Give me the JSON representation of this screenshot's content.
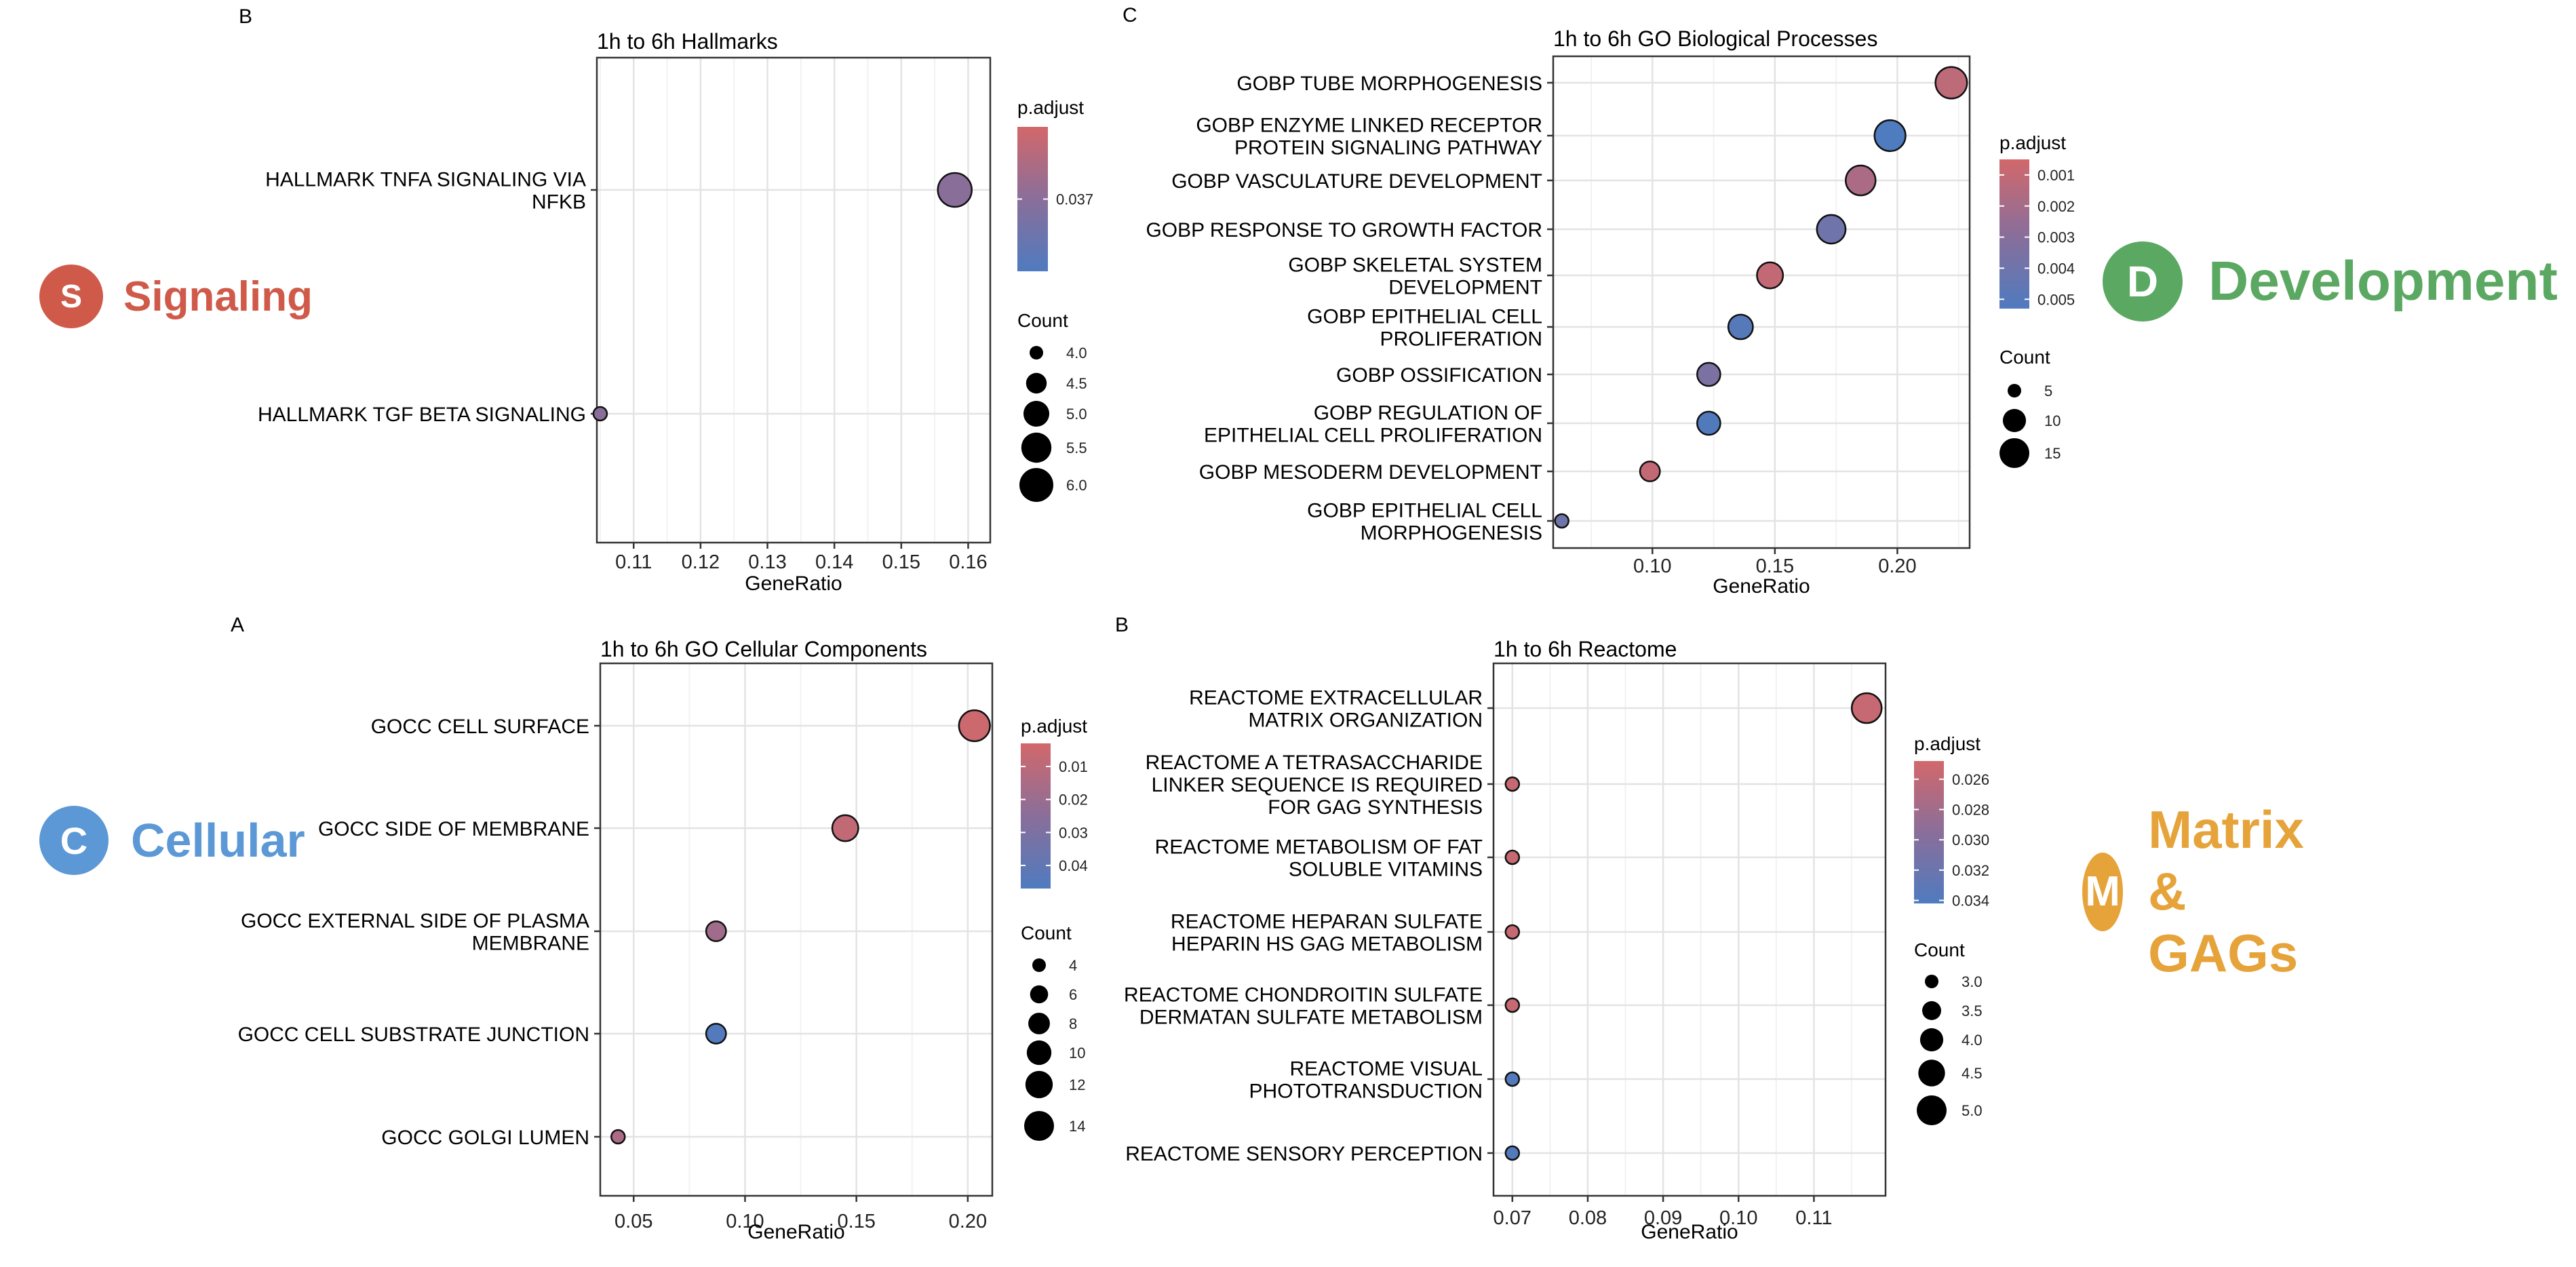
{
  "panel_letters": [
    "B",
    "C",
    "A",
    "B"
  ],
  "badges": [
    {
      "letter": "S",
      "label": "Signaling",
      "color": "#d05a4a"
    },
    {
      "letter": "D",
      "label": "Development",
      "color": "#5ba862"
    },
    {
      "letter": "C",
      "label": "Cellular",
      "color": "#5b98d5"
    },
    {
      "letter": "M",
      "label": "Matrix & GAGs",
      "color": "#e5a33a"
    }
  ],
  "legend_labels": {
    "color_title": "p.adjust",
    "size_title": "Count"
  },
  "colors": {
    "low": "#d2686b",
    "mid": "#8a6e9a",
    "high": "#4f7bbf"
  },
  "chart_data": [
    {
      "id": "hallmarks",
      "type": "scatter",
      "title": "1h to 6h Hallmarks",
      "xlabel": "GeneRatio",
      "ylabel": "",
      "xlim": [
        0.1045,
        0.1633
      ],
      "xticks": [
        0.11,
        0.12,
        0.13,
        0.14,
        0.15,
        0.16
      ],
      "xtick_labels": [
        "0.11",
        "0.12",
        "0.13",
        "0.14",
        "0.15",
        "0.16"
      ],
      "grid": true,
      "legend_placement": "right",
      "categories": [
        [
          "HALLMARK TNFA SIGNALING VIA",
          "NFKB"
        ],
        [
          "HALLMARK TGF BETA SIGNALING"
        ]
      ],
      "points": [
        {
          "x": 0.158,
          "count": 6,
          "p_adjust": 0.037
        },
        {
          "x": 0.105,
          "count": 4,
          "p_adjust": 0.037
        }
      ],
      "color_range": [
        0.036,
        0.038
      ],
      "color_ticks": [
        0.037
      ],
      "color_tick_labels": [
        "0.037"
      ],
      "size_ticks": [
        4.0,
        4.5,
        5.0,
        5.5,
        6.0
      ],
      "size_tick_labels": [
        "4.0",
        "4.5",
        "5.0",
        "5.5",
        "6.0"
      ]
    },
    {
      "id": "go-bp",
      "type": "scatter",
      "title": "1h to 6h GO Biological Processes",
      "xlabel": "GeneRatio",
      "ylabel": "",
      "xlim": [
        0.0595,
        0.2295
      ],
      "xticks": [
        0.1,
        0.15,
        0.2
      ],
      "xtick_labels": [
        "0.10",
        "0.15",
        "0.20"
      ],
      "grid": true,
      "legend_placement": "right",
      "categories": [
        [
          "GOBP TUBE MORPHOGENESIS"
        ],
        [
          "GOBP ENZYME LINKED RECEPTOR",
          "PROTEIN SIGNALING PATHWAY"
        ],
        [
          "GOBP VASCULATURE DEVELOPMENT"
        ],
        [
          "GOBP RESPONSE TO GROWTH FACTOR"
        ],
        [
          "GOBP SKELETAL SYSTEM",
          "DEVELOPMENT"
        ],
        [
          "GOBP EPITHELIAL CELL",
          "PROLIFERATION"
        ],
        [
          "GOBP OSSIFICATION"
        ],
        [
          "GOBP REGULATION OF",
          "EPITHELIAL CELL PROLIFERATION"
        ],
        [
          "GOBP MESODERM DEVELOPMENT"
        ],
        [
          "GOBP EPITHELIAL CELL",
          "MORPHOGENESIS"
        ]
      ],
      "points": [
        {
          "x": 0.222,
          "count": 17,
          "p_adjust": 0.0012
        },
        {
          "x": 0.197,
          "count": 16,
          "p_adjust": 0.0053
        },
        {
          "x": 0.185,
          "count": 15,
          "p_adjust": 0.0018
        },
        {
          "x": 0.173,
          "count": 14,
          "p_adjust": 0.004
        },
        {
          "x": 0.148,
          "count": 12,
          "p_adjust": 0.001
        },
        {
          "x": 0.136,
          "count": 11,
          "p_adjust": 0.005
        },
        {
          "x": 0.123,
          "count": 10,
          "p_adjust": 0.0035
        },
        {
          "x": 0.123,
          "count": 10,
          "p_adjust": 0.0052
        },
        {
          "x": 0.099,
          "count": 8,
          "p_adjust": 0.001
        },
        {
          "x": 0.063,
          "count": 5,
          "p_adjust": 0.004
        }
      ],
      "color_range": [
        0.0005,
        0.0053
      ],
      "color_ticks": [
        0.001,
        0.002,
        0.003,
        0.004,
        0.005
      ],
      "color_tick_labels": [
        "0.001",
        "0.002",
        "0.003",
        "0.004",
        "0.005"
      ],
      "size_ticks": [
        5,
        10,
        15
      ],
      "size_tick_labels": [
        "5",
        "10",
        "15"
      ]
    },
    {
      "id": "go-cc",
      "type": "scatter",
      "title": "1h to 6h GO Cellular Components",
      "xlabel": "GeneRatio",
      "ylabel": "",
      "xlim": [
        0.035,
        0.211
      ],
      "xticks": [
        0.05,
        0.1,
        0.15,
        0.2
      ],
      "xtick_labels": [
        "0.05",
        "0.10",
        "0.15",
        "0.20"
      ],
      "grid": true,
      "legend_placement": "right",
      "categories": [
        [
          "GOCC CELL SURFACE"
        ],
        [
          "GOCC SIDE OF MEMBRANE"
        ],
        [
          "GOCC EXTERNAL SIDE OF PLASMA",
          "MEMBRANE"
        ],
        [
          "GOCC CELL SUBSTRATE JUNCTION"
        ],
        [
          "GOCC GOLGI LUMEN"
        ]
      ],
      "points": [
        {
          "x": 0.203,
          "count": 15,
          "p_adjust": 0.005
        },
        {
          "x": 0.145,
          "count": 11,
          "p_adjust": 0.008
        },
        {
          "x": 0.087,
          "count": 7,
          "p_adjust": 0.018
        },
        {
          "x": 0.087,
          "count": 7,
          "p_adjust": 0.046
        },
        {
          "x": 0.043,
          "count": 4,
          "p_adjust": 0.015
        }
      ],
      "color_range": [
        0.003,
        0.047
      ],
      "color_ticks": [
        0.01,
        0.02,
        0.03,
        0.04
      ],
      "color_tick_labels": [
        "0.01",
        "0.02",
        "0.03",
        "0.04"
      ],
      "size_ticks": [
        4,
        6,
        8,
        10,
        12,
        14
      ],
      "size_tick_labels": [
        "4",
        "6",
        "8",
        "10",
        "12",
        "14"
      ]
    },
    {
      "id": "reactome",
      "type": "scatter",
      "title": "1h to 6h Reactome",
      "xlabel": "GeneRatio",
      "ylabel": "",
      "xlim": [
        0.0675,
        0.1195
      ],
      "xticks": [
        0.07,
        0.08,
        0.09,
        0.1,
        0.11
      ],
      "xtick_labels": [
        "0.07",
        "0.08",
        "0.09",
        "0.10",
        "0.11"
      ],
      "grid": true,
      "legend_placement": "right",
      "categories": [
        [
          "REACTOME EXTRACELLULAR",
          "MATRIX ORGANIZATION"
        ],
        [
          "REACTOME A TETRASACCHARIDE",
          "LINKER SEQUENCE IS REQUIRED",
          "FOR GAG SYNTHESIS"
        ],
        [
          "REACTOME METABOLISM OF FAT",
          "SOLUBLE VITAMINS"
        ],
        [
          "REACTOME HEPARAN SULFATE",
          "HEPARIN HS GAG METABOLISM"
        ],
        [
          "REACTOME CHONDROITIN SULFATE",
          "DERMATAN SULFATE METABOLISM"
        ],
        [
          "REACTOME VISUAL",
          "PHOTOTRANSDUCTION"
        ],
        [
          "REACTOME SENSORY PERCEPTION"
        ]
      ],
      "points": [
        {
          "x": 0.117,
          "count": 5,
          "p_adjust": 0.0255
        },
        {
          "x": 0.07,
          "count": 3,
          "p_adjust": 0.0255
        },
        {
          "x": 0.07,
          "count": 3,
          "p_adjust": 0.0255
        },
        {
          "x": 0.07,
          "count": 3,
          "p_adjust": 0.0255
        },
        {
          "x": 0.07,
          "count": 3,
          "p_adjust": 0.0255
        },
        {
          "x": 0.07,
          "count": 3,
          "p_adjust": 0.034
        },
        {
          "x": 0.07,
          "count": 3,
          "p_adjust": 0.034
        }
      ],
      "color_range": [
        0.0248,
        0.0342
      ],
      "color_ticks": [
        0.026,
        0.028,
        0.03,
        0.032,
        0.034
      ],
      "color_tick_labels": [
        "0.026",
        "0.028",
        "0.030",
        "0.032",
        "0.034"
      ],
      "size_ticks": [
        3.0,
        3.5,
        4.0,
        4.5,
        5.0
      ],
      "size_tick_labels": [
        "3.0",
        "3.5",
        "4.0",
        "4.5",
        "5.0"
      ]
    }
  ]
}
